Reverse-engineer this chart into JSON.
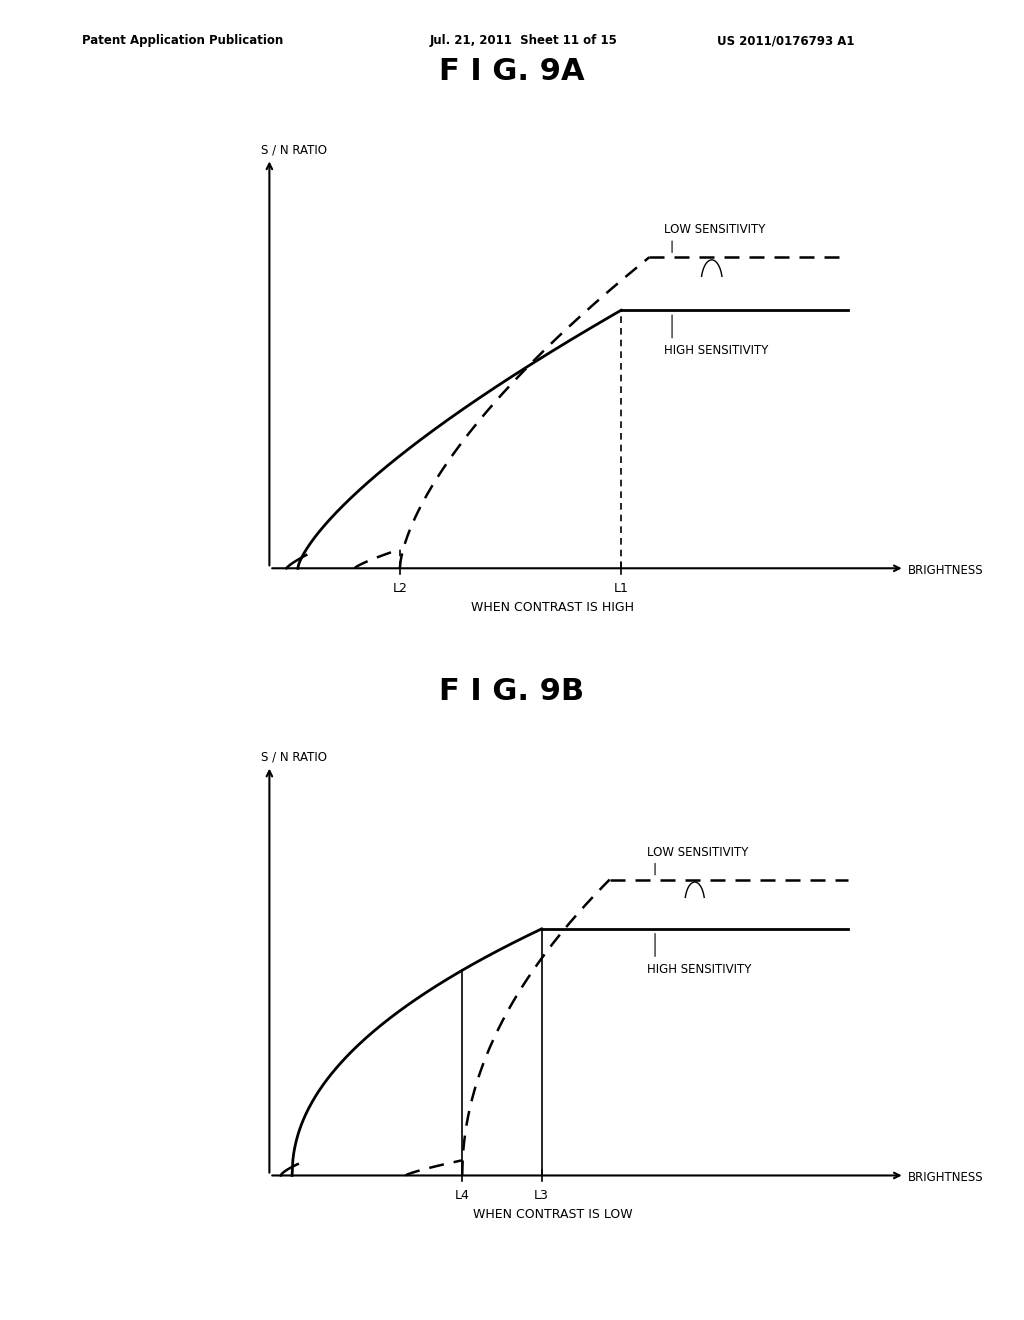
{
  "title_9a": "F I G. 9A",
  "title_9b": "F I G. 9B",
  "header_left": "Patent Application Publication",
  "header_mid": "Jul. 21, 2011  Sheet 11 of 15",
  "header_right": "US 2011/0176793 A1",
  "ylabel": "S / N RATIO",
  "xlabel": "BRIGHTNESS",
  "subtitle_9a": "WHEN CONTRAST IS HIGH",
  "subtitle_9b": "WHEN CONTRAST IS LOW",
  "label_low_sensitivity": "LOW SENSITIVITY",
  "label_high_sensitivity": "HIGH SENSITIVITY",
  "background_color": "#ffffff"
}
